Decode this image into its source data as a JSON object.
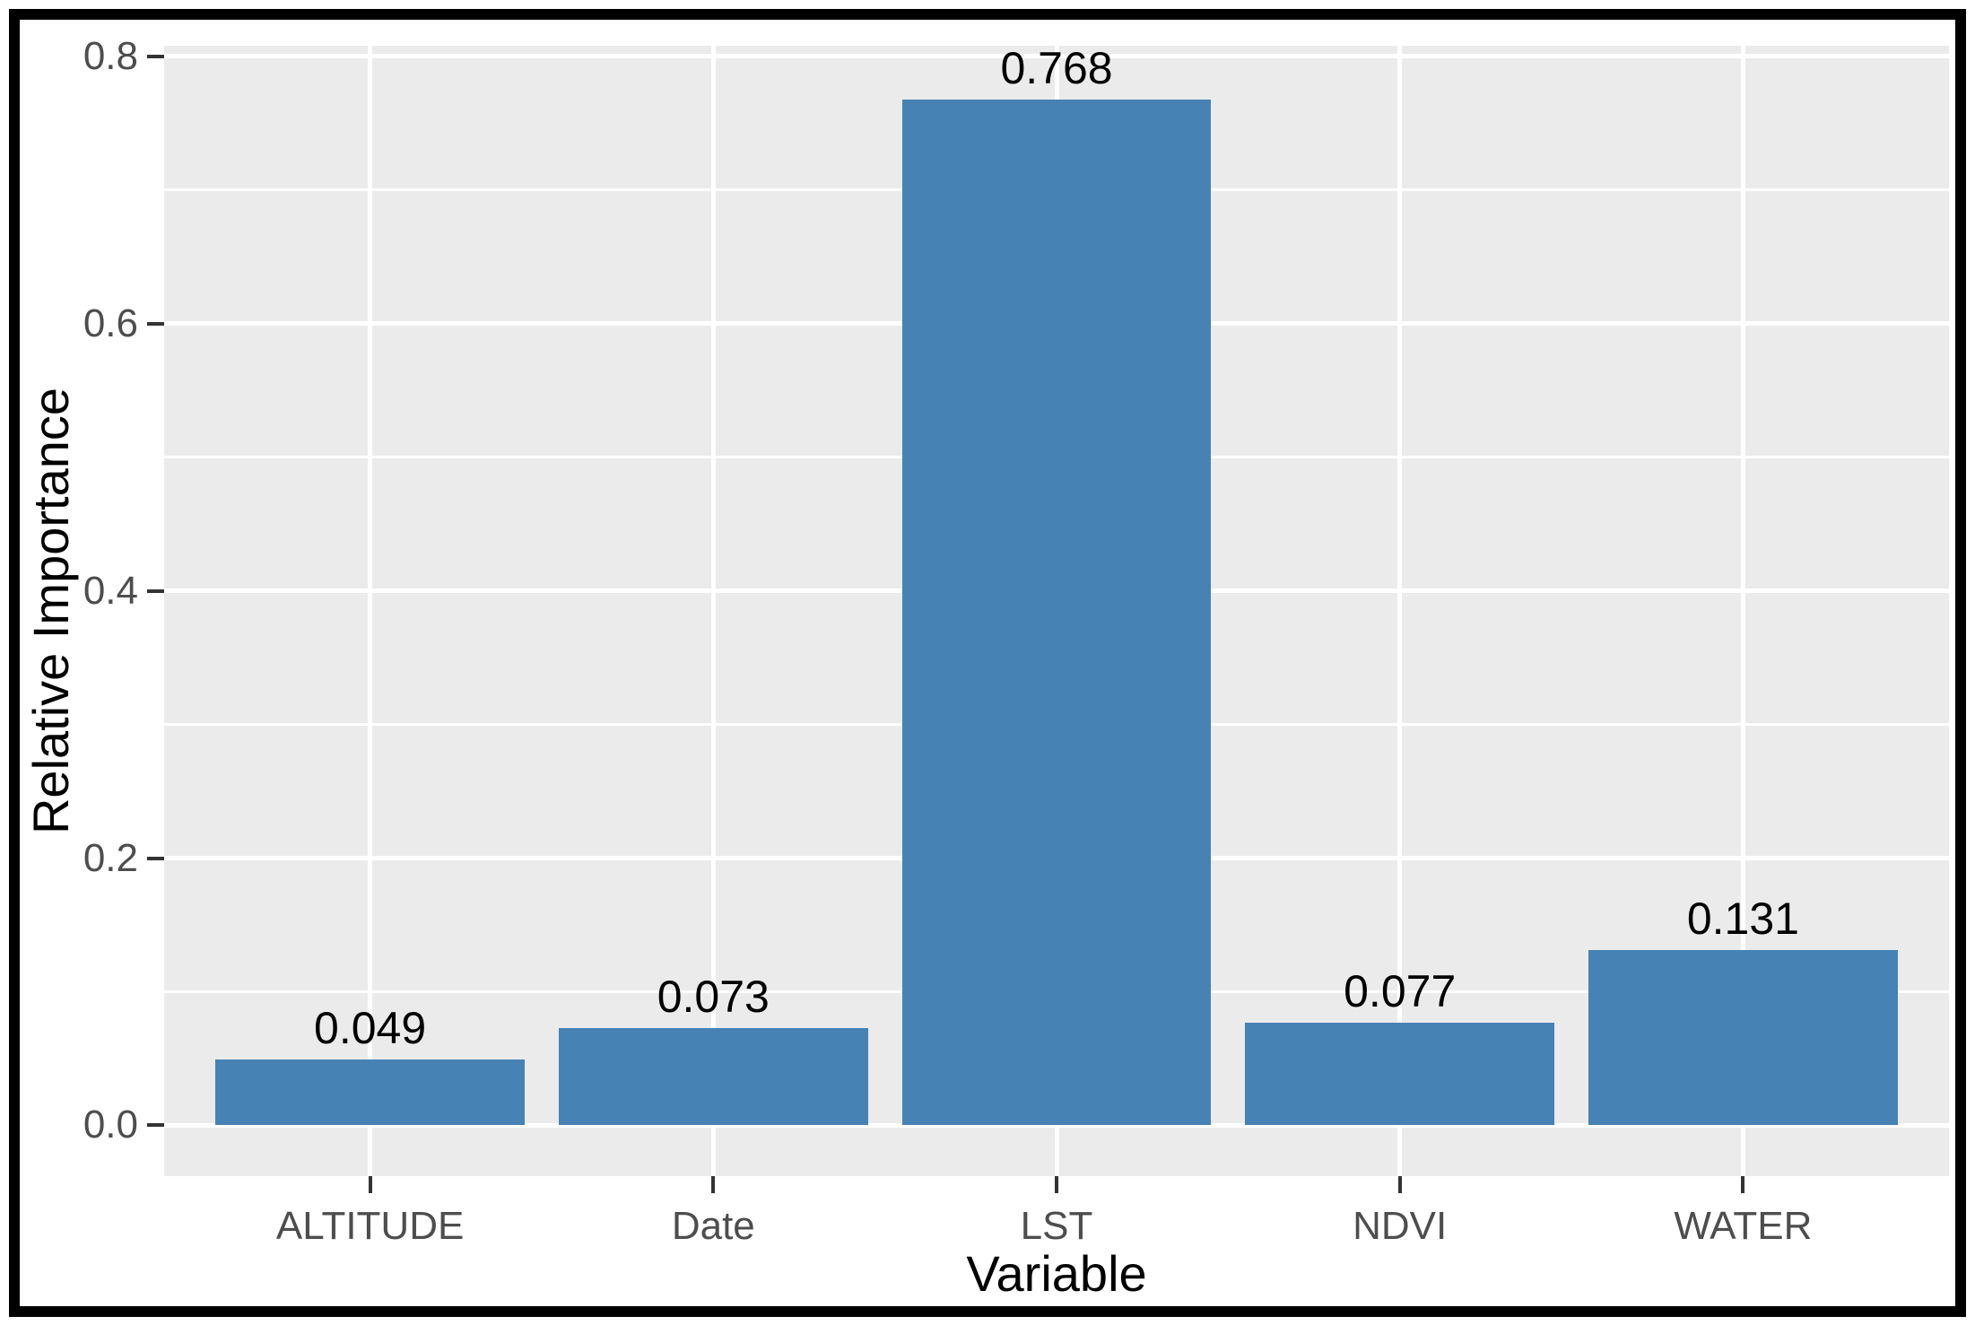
{
  "chart_data": {
    "type": "bar",
    "title": "",
    "categories": [
      "ALTITUDE",
      "Date",
      "LST",
      "NDVI",
      "WATER"
    ],
    "values": [
      0.049,
      0.073,
      0.768,
      0.077,
      0.131
    ],
    "bar_labels": [
      "0.049",
      "0.073",
      "0.768",
      "0.077",
      "0.131"
    ],
    "xlabel": "Variable",
    "ylabel": "Relative Importance",
    "y_ticks": [
      {
        "label": "0.0",
        "value": 0.0
      },
      {
        "label": "0.2",
        "value": 0.2
      },
      {
        "label": "0.4",
        "value": 0.4
      },
      {
        "label": "0.6",
        "value": 0.6
      },
      {
        "label": "0.8",
        "value": 0.8
      }
    ],
    "y_minor_values": [
      0.1,
      0.3,
      0.5,
      0.7
    ],
    "ylim": [
      -0.038,
      0.808
    ],
    "grid": "white major and minor horizontal lines, white vertical line at each category center",
    "legend": false,
    "colors": {
      "bar": "#4682b4",
      "panel_background": "#ebebeb",
      "gridline": "#ffffff",
      "tick_label_text": "#4d4d4d",
      "tick_mark": "#333333",
      "axis_title_text": "#000000",
      "bar_label_text": "#000000",
      "figure_border": "#000000",
      "figure_background": "#ffffff"
    }
  }
}
